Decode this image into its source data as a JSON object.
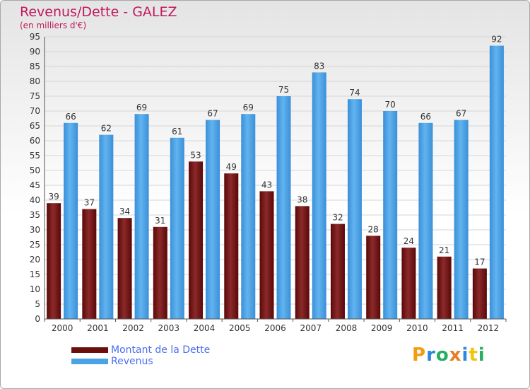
{
  "title": "Revenus/Dette - GALEZ",
  "subtitle": "(en milliers d'€)",
  "logo": "Proxiti",
  "legend": {
    "debt_label": "Montant de la Dette",
    "revenue_label": "Revenus"
  },
  "colors": {
    "debt": "#6b0e0e",
    "revenue": "#4aa3e6",
    "title": "#c2185b",
    "legend_text": "#4a6df0"
  },
  "chart_data": {
    "type": "bar",
    "title": "Revenus/Dette - GALEZ",
    "ylabel": "(en milliers d'€)",
    "xlabel": "",
    "ylim": [
      0,
      95
    ],
    "yticks": [
      0,
      5,
      10,
      15,
      20,
      25,
      30,
      35,
      40,
      45,
      50,
      55,
      60,
      65,
      70,
      75,
      80,
      85,
      90,
      95
    ],
    "grid": true,
    "categories": [
      "2000",
      "2001",
      "2002",
      "2003",
      "2004",
      "2005",
      "2006",
      "2007",
      "2008",
      "2009",
      "2010",
      "2011",
      "2012"
    ],
    "series": [
      {
        "name": "Montant de la Dette",
        "values": [
          39,
          37,
          34,
          31,
          53,
          49,
          43,
          38,
          32,
          28,
          24,
          21,
          17
        ]
      },
      {
        "name": "Revenus",
        "values": [
          66,
          62,
          69,
          61,
          67,
          69,
          75,
          83,
          74,
          70,
          66,
          67,
          92
        ]
      }
    ]
  }
}
